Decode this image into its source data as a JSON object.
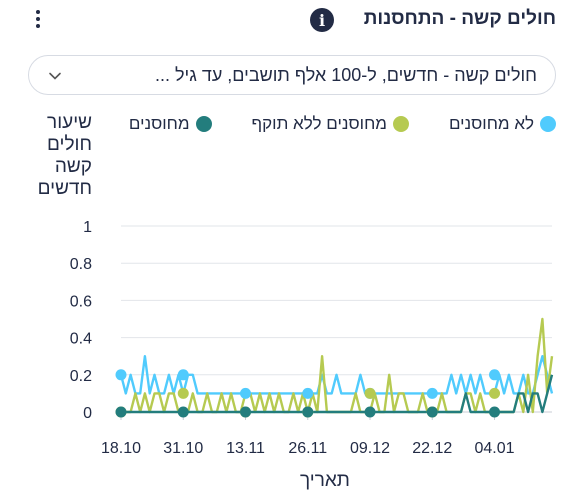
{
  "header": {
    "title": "חולים קשה - התחסנות",
    "info_icon": "info-icon",
    "menu_icon": "kebab-menu-icon"
  },
  "dropdown": {
    "value": "חולים קשה - חדשים, ל-100 אלף תושבים, עד גיל ...",
    "icon": "chevron-down-icon"
  },
  "legend": [
    {
      "label": "לא מחוסנים",
      "color": "#50cbfd"
    },
    {
      "label": "מחוסנים ללא תוקף",
      "color": "#b6ca51"
    },
    {
      "label": "מחוסנים",
      "color": "#237d7d"
    }
  ],
  "chart_data": {
    "type": "line",
    "ylabel": "שיעור חולים קשה חדשים",
    "xlabel": "תאריך",
    "ylim": [
      0,
      1
    ],
    "yticks": [
      0,
      0.2,
      0.4,
      0.6,
      0.8,
      1
    ],
    "ytick_labels": [
      "0",
      "0.2",
      "0.4",
      "0.6",
      "0.8",
      "1"
    ],
    "grid": true,
    "x_start": "2021-10-18",
    "x_end": "2022-01-16",
    "xticks": [
      "18.10",
      "31.10",
      "13.11",
      "26.11",
      "09.12",
      "22.12",
      "04.01"
    ],
    "xtick_dates": [
      "2021-10-18",
      "2021-10-31",
      "2021-11-13",
      "2021-11-26",
      "2021-12-09",
      "2021-12-22",
      "2022-01-04"
    ],
    "series": [
      {
        "name": "לא מחוסנים",
        "color": "#50cbfd",
        "markers": [
          0.2,
          0.2,
          0.1,
          0.1,
          0.1,
          0.1,
          0.2
        ],
        "values": [
          0.2,
          0.1,
          0.2,
          0.1,
          0.1,
          0.3,
          0.1,
          0.2,
          0.1,
          0.1,
          0.2,
          0.1,
          0.2,
          0.1,
          0.2,
          0.2,
          0.1,
          0.1,
          0.1,
          0.1,
          0.1,
          0.1,
          0.1,
          0.1,
          0.1,
          0.1,
          0.1,
          0.1,
          0.1,
          0.1,
          0.1,
          0.1,
          0.1,
          0.1,
          0.1,
          0.1,
          0.1,
          0.1,
          0.1,
          0.1,
          0.1,
          0.1,
          0.2,
          0.1,
          0.1,
          0.2,
          0.1,
          0.1,
          0.1,
          0.1,
          0.2,
          0.1,
          0.1,
          0.1,
          0.1,
          0.1,
          0.1,
          0.1,
          0.1,
          0.1,
          0.1,
          0.1,
          0.1,
          0.1,
          0.1,
          0.1,
          0.1,
          0.1,
          0.1,
          0.2,
          0.1,
          0.2,
          0.1,
          0.2,
          0.1,
          0.2,
          0.1,
          0.1,
          0.1,
          0.2,
          0.1,
          0.2,
          0.1,
          0.1,
          0.2,
          0.1,
          0.1,
          0.2,
          0.3,
          0.2,
          0.1
        ]
      },
      {
        "name": "מחוסנים ללא תוקף",
        "color": "#b6ca51",
        "markers": [
          0,
          0.1,
          0,
          0,
          0.1,
          0,
          0.1
        ],
        "values": [
          0,
          0,
          0,
          0.1,
          0,
          0.1,
          0,
          0.1,
          0.1,
          0,
          0.1,
          0.1,
          0,
          0,
          0,
          0.1,
          0,
          0,
          0.1,
          0,
          0,
          0.1,
          0,
          0.1,
          0,
          0,
          0.1,
          0.1,
          0,
          0.1,
          0,
          0.1,
          0,
          0.1,
          0,
          0,
          0.1,
          0,
          0.1,
          0,
          0.1,
          0,
          0.3,
          0,
          0,
          0,
          0,
          0,
          0,
          0.1,
          0,
          0,
          0,
          0.1,
          0,
          0,
          0.2,
          0,
          0.1,
          0.1,
          0,
          0,
          0,
          0.1,
          0,
          0,
          0,
          0.1,
          0,
          0,
          0,
          0,
          0.1,
          0.1,
          0,
          0.1,
          0,
          0,
          0,
          0,
          0,
          0,
          0,
          0.1,
          0,
          0.2,
          0,
          0.3,
          0.5,
          0.1,
          0.3
        ]
      },
      {
        "name": "מחוסנים",
        "color": "#237d7d",
        "markers": [
          0,
          0,
          0,
          0,
          0,
          0,
          0
        ],
        "values": [
          0,
          0,
          0,
          0,
          0,
          0,
          0,
          0,
          0,
          0,
          0,
          0,
          0,
          0,
          0,
          0,
          0,
          0,
          0,
          0,
          0,
          0,
          0,
          0,
          0,
          0,
          0,
          0,
          0,
          0,
          0,
          0,
          0,
          0,
          0,
          0,
          0,
          0,
          0,
          0,
          0,
          0,
          0,
          0,
          0,
          0,
          0,
          0,
          0,
          0,
          0,
          0,
          0,
          0,
          0,
          0,
          0,
          0,
          0,
          0,
          0,
          0,
          0,
          0,
          0,
          0,
          0,
          0,
          0,
          0,
          0,
          0,
          0.1,
          0,
          0,
          0,
          0,
          0,
          0,
          0,
          0,
          0,
          0,
          0.1,
          0.1,
          0,
          0.1,
          0.1,
          0,
          0.1,
          0.2
        ]
      }
    ]
  }
}
